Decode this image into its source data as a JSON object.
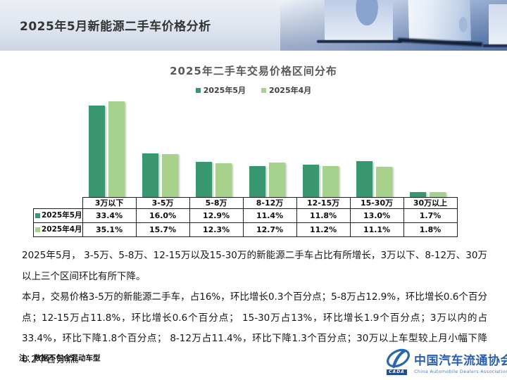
{
  "header": {
    "title": "2025年5月新能源二手车价格分析"
  },
  "chart": {
    "title": "2025年二手车交易价格区间分布"
  },
  "chart_data": {
    "type": "bar",
    "title": "2025年二手车交易价格区间分布",
    "categories": [
      "3万以下",
      "3-5万",
      "5-8万",
      "8-12万",
      "12-15万",
      "15-30万",
      "30万以上"
    ],
    "series": [
      {
        "name": "2025年5月",
        "color": "#38976F",
        "values": [
          33.4,
          16.0,
          12.9,
          11.4,
          11.8,
          13.0,
          1.7
        ]
      },
      {
        "name": "2025年4月",
        "color": "#A6D28E",
        "values": [
          35.1,
          15.7,
          12.3,
          12.7,
          11.2,
          11.1,
          1.8
        ]
      }
    ],
    "value_unit": "%",
    "ylim": [
      0,
      36
    ],
    "grid": false,
    "legend_position": "top",
    "xlabel": "",
    "ylabel": ""
  },
  "table": {
    "column_headers": [
      "3万以下",
      "3-5万",
      "5-8万",
      "8-12万",
      "12-15万",
      "15-30万",
      "30万以上"
    ],
    "rows": [
      {
        "label": "2025年5月",
        "swatch": "#38976F",
        "values": [
          "33.4%",
          "16.0%",
          "12.9%",
          "11.4%",
          "11.8%",
          "13.0%",
          "1.7%"
        ]
      },
      {
        "label": "2025年4月",
        "swatch": "#A6D28E",
        "values": [
          "35.1%",
          "15.7%",
          "12.3%",
          "12.7%",
          "11.2%",
          "11.1%",
          "1.8%"
        ]
      }
    ]
  },
  "analysis": {
    "paragraph1": "2025年5月， 3-5万、5-8万、12-15万以及15-30万的新能源二手车占比有所增长，3万以下、8-12万、30万以上三个区间环比有所下降。",
    "paragraph2": "本月，交易价格3-5万的新能源二手车，占16%，环比增长0.3个百分点；5-8万占12.9%，环比增长0.6个百分点；12-15万占11.8%，环比增长0.6个百分点； 15-30万占13%，环比增长1.9个百分点；3万以内的占33.4%，环比下降1.8个百分点； 8-12万占11.4%，环比下降1.3个百分点；30万以上车型较上月小幅下降0.2个百分点。"
  },
  "footer": {
    "note": "注：数据不包含混动车型",
    "logo_cn": "中国汽车流通协会",
    "logo_en": "China Automobile Dealers Association",
    "logo_tag": "CADA"
  },
  "colors": {
    "series_may": "#38976F",
    "series_april": "#A6D28E",
    "logo_blue": "#2a5fae",
    "header_bg": "#dfe5ef",
    "chart_title_text": "#595959"
  }
}
